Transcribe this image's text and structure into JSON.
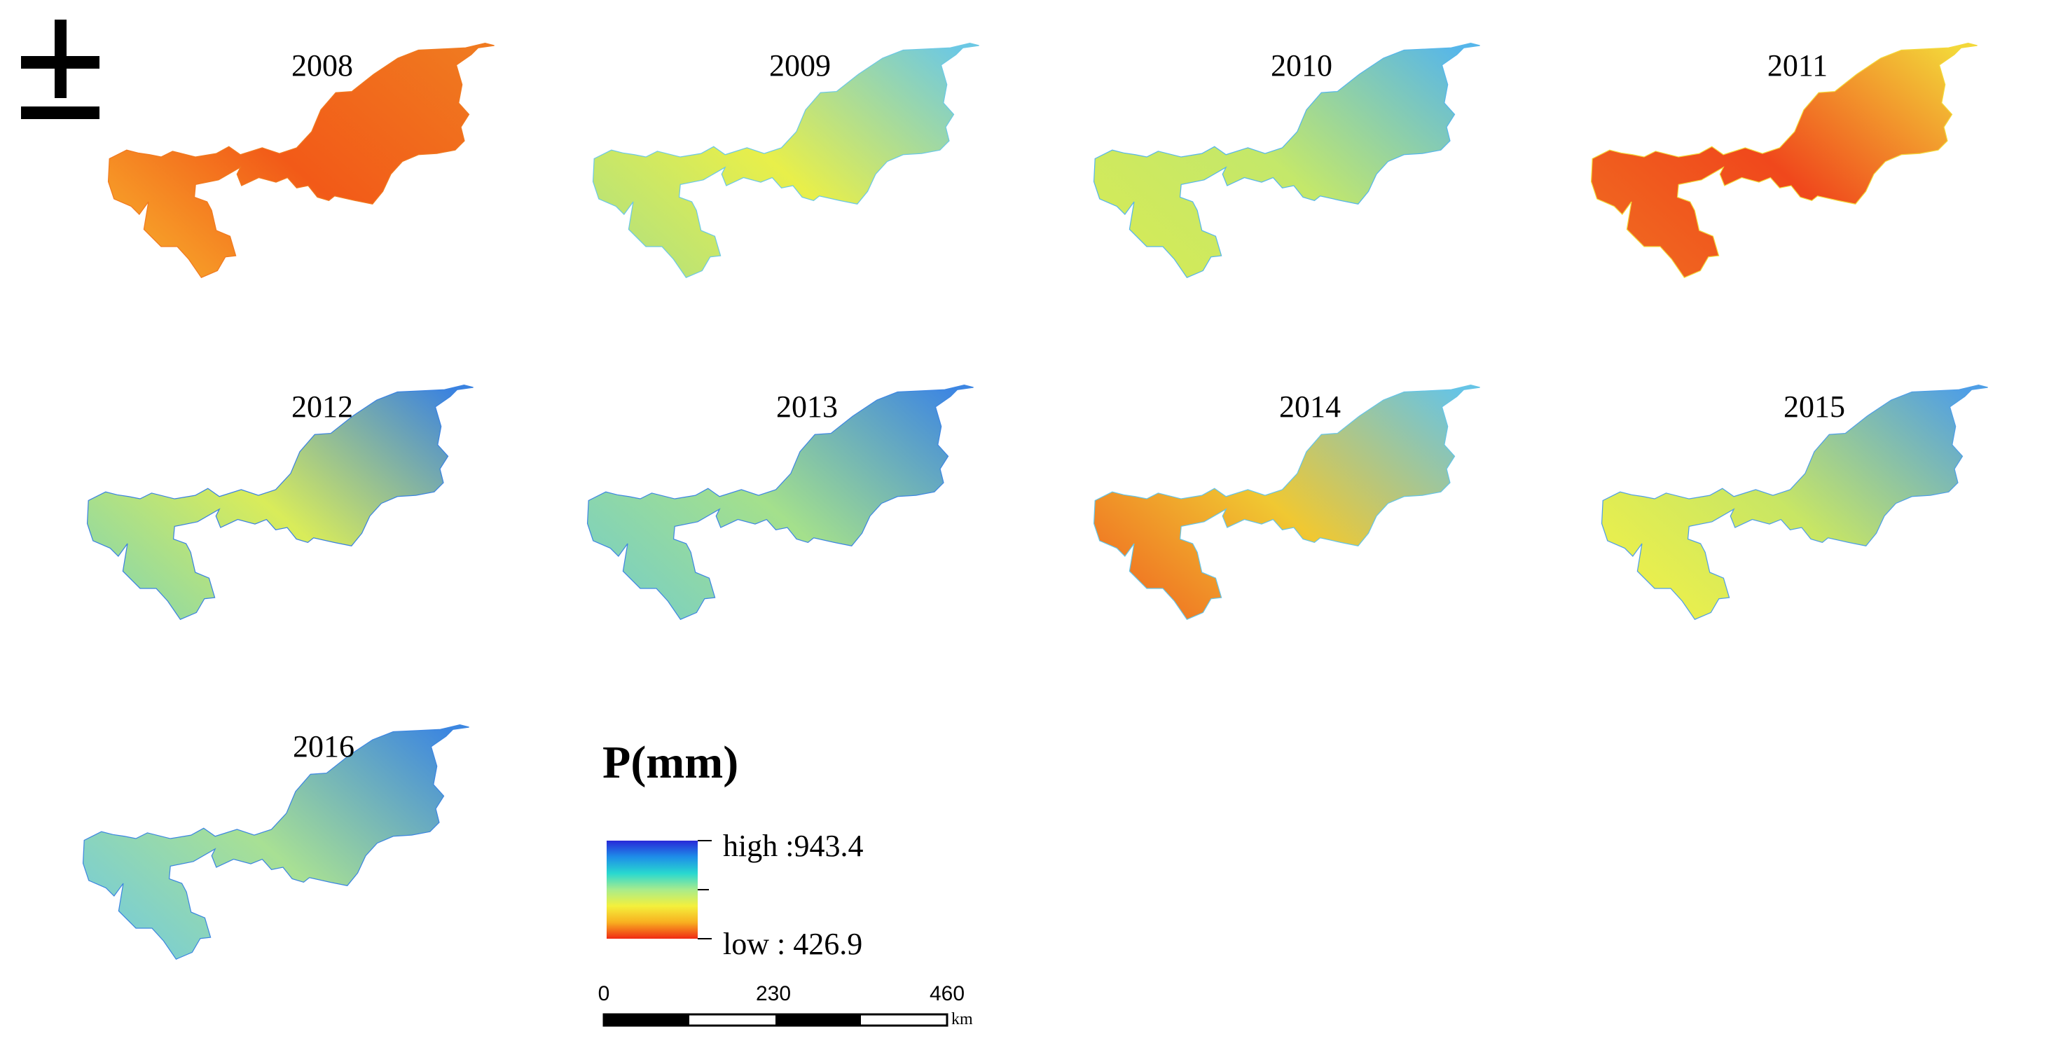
{
  "north_arrow": {
    "icon": "north-arrow-icon"
  },
  "maps": [
    {
      "year": "2008",
      "colors": {
        "west": "#f7a52a",
        "mid": "#f25a18",
        "east": "#f07a20"
      }
    },
    {
      "year": "2009",
      "colors": {
        "west": "#b6e27a",
        "mid": "#e8ef4a",
        "east": "#6cc8e4"
      }
    },
    {
      "year": "2010",
      "colors": {
        "west": "#d4ea58",
        "mid": "#c4e86a",
        "east": "#56b6ea"
      }
    },
    {
      "year": "2011",
      "colors": {
        "west": "#f06820",
        "mid": "#f0481c",
        "east": "#f3d83a"
      }
    },
    {
      "year": "2012",
      "colors": {
        "west": "#8ed8a6",
        "mid": "#d9ec5a",
        "east": "#3a82e0"
      }
    },
    {
      "year": "2013",
      "colors": {
        "west": "#7cd0c0",
        "mid": "#a4e08c",
        "east": "#3d86e2"
      }
    },
    {
      "year": "2014",
      "colors": {
        "west": "#f07022",
        "mid": "#f0c832",
        "east": "#66c4e6"
      }
    },
    {
      "year": "2015",
      "colors": {
        "west": "#eef04a",
        "mid": "#c8e664",
        "east": "#4e9ee6"
      }
    },
    {
      "year": "2016",
      "colors": {
        "west": "#78cdd6",
        "mid": "#a8e094",
        "east": "#3c86e0"
      }
    }
  ],
  "legend": {
    "title": "P(mm)",
    "high_label": "high :943.4",
    "low_label": "low : 426.9",
    "high_value": 943.4,
    "low_value": 426.9,
    "ramp_colors": [
      "#2828d8",
      "#1e8ee8",
      "#28d8d0",
      "#a8ec8c",
      "#f4f03c",
      "#f8b020",
      "#f02a14"
    ]
  },
  "scale_bar": {
    "ticks": [
      "0",
      "230",
      "460"
    ],
    "unit": "km"
  }
}
